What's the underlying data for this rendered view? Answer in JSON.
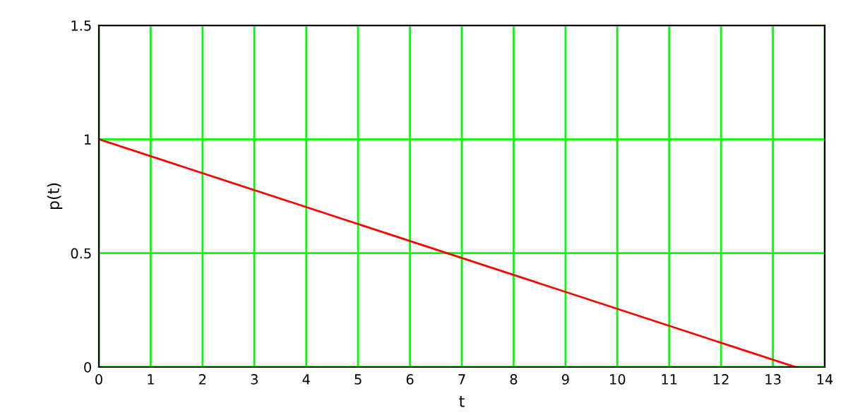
{
  "chart_data": {
    "type": "line",
    "xlabel": "t",
    "ylabel": "p(t)",
    "series": [
      {
        "color": "#ff0000",
        "x": [
          0,
          13.43
        ],
        "values": [
          1,
          0
        ]
      }
    ],
    "xlim": [
      0,
      14
    ],
    "xticks": [
      0,
      1,
      2,
      3,
      4,
      5,
      6,
      7,
      8,
      9,
      10,
      11,
      12,
      13,
      14
    ],
    "ylim": [
      0,
      1.5
    ],
    "yticks": [
      0,
      0.5,
      1,
      1.5
    ],
    "grid": true,
    "legend": false
  }
}
